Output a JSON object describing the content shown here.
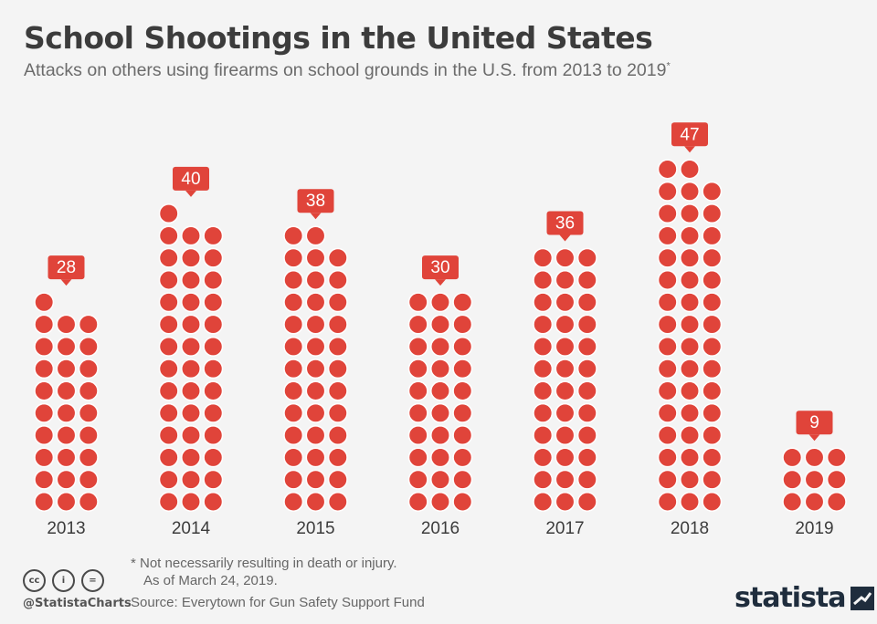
{
  "header": {
    "title": "School Shootings in the United States",
    "subtitle": "Attacks on others using firearms on school grounds in the U.S. from 2013 to 2019",
    "subtitle_marker": "*"
  },
  "chart_data": {
    "type": "bar",
    "style": "pictogram dots, one dot per incident, 3 dots per row",
    "categories": [
      "2013",
      "2014",
      "2015",
      "2016",
      "2017",
      "2018",
      "2019"
    ],
    "values": [
      28,
      40,
      38,
      30,
      36,
      47,
      9
    ],
    "title": "School Shootings in the United States",
    "xlabel": "",
    "ylabel": "",
    "data_labels": true,
    "grid": false,
    "color": "#e0443a"
  },
  "footer": {
    "note_line1": "* Not necessarily resulting in death or injury.",
    "note_line2": "As of March 24, 2019.",
    "source": "Source: Everytown for Gun Safety Support Fund",
    "handle": "@StatistaCharts",
    "brand": "statista",
    "license_icons": [
      "cc",
      "i",
      "="
    ]
  },
  "colors": {
    "dot": "#e0443a",
    "dot_border": "#ffffff",
    "label_bg": "#e0443a",
    "label_text": "#ffffff",
    "background": "#f4f4f4",
    "title": "#3c3c3c",
    "brand": "#1f2d3d"
  }
}
